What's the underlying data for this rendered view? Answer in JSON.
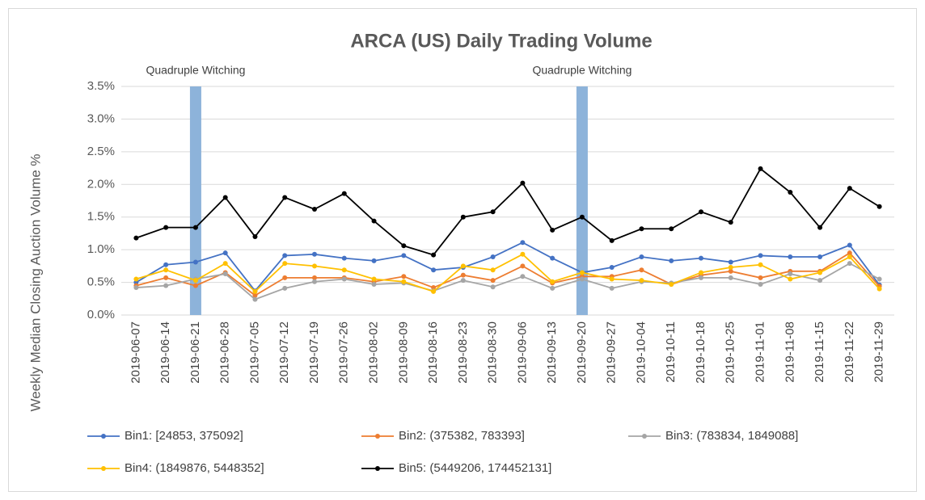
{
  "chart_data": {
    "type": "line",
    "title": "ARCA (US) Daily Trading Volume",
    "y_label": "Weekly Median Closing Auction Volume %",
    "categories": [
      "2019-06-07",
      "2019-06-14",
      "2019-06-21",
      "2019-06-28",
      "2019-07-05",
      "2019-07-12",
      "2019-07-19",
      "2019-07-26",
      "2019-08-02",
      "2019-08-09",
      "2019-08-16",
      "2019-08-23",
      "2019-08-30",
      "2019-09-06",
      "2019-09-13",
      "2019-09-20",
      "2019-09-27",
      "2019-10-04",
      "2019-10-11",
      "2019-10-18",
      "2019-10-25",
      "2019-11-01",
      "2019-11-08",
      "2019-11-15",
      "2019-11-22",
      "2019-11-29"
    ],
    "series": [
      {
        "name": "Bin1: [24853, 375092]",
        "color": "#4472c4",
        "values": [
          0.5,
          0.77,
          0.81,
          0.95,
          0.37,
          0.91,
          0.93,
          0.87,
          0.83,
          0.91,
          0.69,
          0.73,
          0.89,
          1.11,
          0.87,
          0.65,
          0.73,
          0.89,
          0.83,
          0.87,
          0.81,
          0.91,
          0.89,
          0.89,
          1.07,
          0.46
        ]
      },
      {
        "name": "Bin2: (375382, 783393]",
        "color": "#ed7d31",
        "values": [
          0.45,
          0.57,
          0.45,
          0.65,
          0.3,
          0.57,
          0.57,
          0.57,
          0.51,
          0.59,
          0.42,
          0.61,
          0.53,
          0.75,
          0.49,
          0.59,
          0.59,
          0.69,
          0.47,
          0.61,
          0.67,
          0.57,
          0.67,
          0.67,
          0.95,
          0.44
        ]
      },
      {
        "name": "Bin3: (783834, 1849088]",
        "color": "#a5a5a5",
        "values": [
          0.42,
          0.45,
          0.55,
          0.63,
          0.24,
          0.41,
          0.51,
          0.55,
          0.47,
          0.49,
          0.37,
          0.53,
          0.43,
          0.59,
          0.41,
          0.55,
          0.41,
          0.51,
          0.49,
          0.57,
          0.57,
          0.47,
          0.63,
          0.53,
          0.79,
          0.55
        ]
      },
      {
        "name": "Bin4: (1849876, 5448352]",
        "color": "#ffc000",
        "values": [
          0.55,
          0.69,
          0.53,
          0.79,
          0.36,
          0.79,
          0.75,
          0.69,
          0.55,
          0.51,
          0.36,
          0.75,
          0.69,
          0.93,
          0.51,
          0.65,
          0.55,
          0.53,
          0.47,
          0.65,
          0.73,
          0.77,
          0.55,
          0.65,
          0.89,
          0.4
        ]
      },
      {
        "name": "Bin5: (5449206, 174452131]",
        "color": "#000000",
        "values": [
          1.18,
          1.34,
          1.34,
          1.8,
          1.2,
          1.8,
          1.62,
          1.86,
          1.44,
          1.06,
          0.92,
          1.5,
          1.58,
          2.02,
          1.3,
          1.5,
          1.14,
          1.32,
          1.32,
          1.58,
          1.42,
          2.24,
          1.88,
          1.34,
          1.94,
          1.66
        ]
      }
    ],
    "ylim": [
      0,
      3.5
    ],
    "yticks": [
      {
        "value": 0,
        "label": "0.0%"
      },
      {
        "value": 0.5,
        "label": "0.5%"
      },
      {
        "value": 1,
        "label": "1.0%"
      },
      {
        "value": 1.5,
        "label": "1.5%"
      },
      {
        "value": 2,
        "label": "2.0%"
      },
      {
        "value": 2.5,
        "label": "2.5%"
      },
      {
        "value": 3,
        "label": "3.0%"
      },
      {
        "value": 3.5,
        "label": "3.5%"
      }
    ],
    "grid": true,
    "annotations": [
      {
        "text": "Quadruple Witching",
        "x": "2019-06-21",
        "color": "#8db3da"
      },
      {
        "text": "Quadruple Witching",
        "x": "2019-09-20",
        "color": "#8db3da"
      }
    ],
    "legend": "bottom"
  }
}
